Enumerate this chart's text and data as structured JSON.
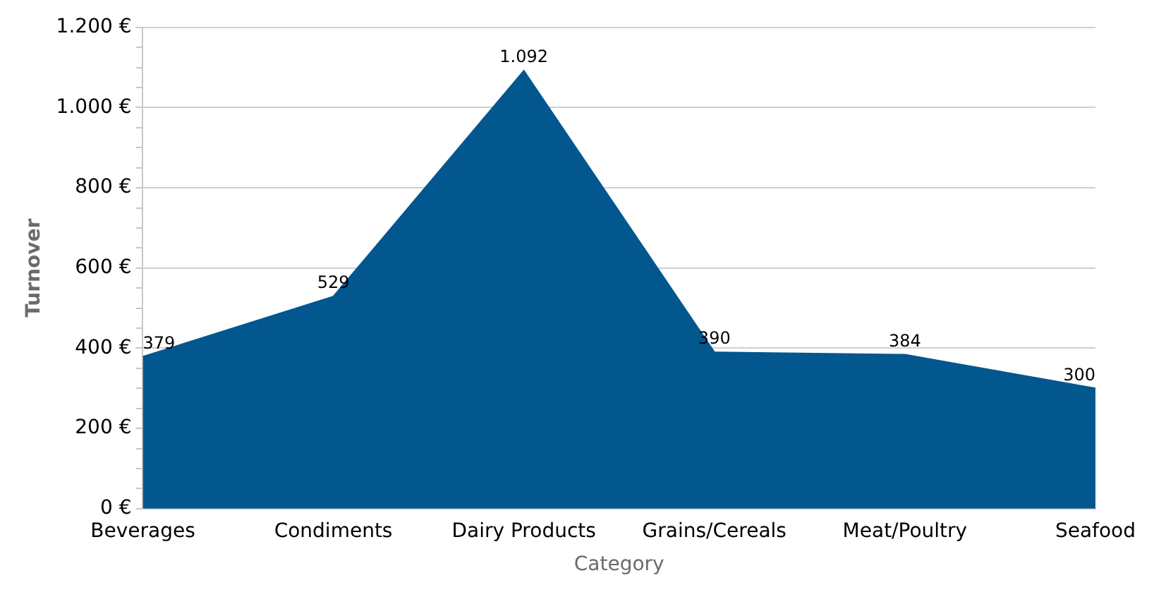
{
  "chart_data": {
    "type": "area",
    "xlabel": "Category",
    "ylabel": "Turnover",
    "categories": [
      "Beverages",
      "Condiments",
      "Dairy Products",
      "Grains/Cereals",
      "Meat/Poultry",
      "Seafood"
    ],
    "values": [
      379,
      529,
      1092,
      390,
      384,
      300
    ],
    "value_labels": [
      "379",
      "529",
      "1.092",
      "390",
      "384",
      "300"
    ],
    "color": "#02578f",
    "ylim": [
      0,
      1200
    ],
    "yticks": [
      {
        "value": 0,
        "label": "0 €"
      },
      {
        "value": 50,
        "label": null
      },
      {
        "value": 100,
        "label": null
      },
      {
        "value": 150,
        "label": null
      },
      {
        "value": 200,
        "label": "200 €"
      },
      {
        "value": 250,
        "label": null
      },
      {
        "value": 300,
        "label": null
      },
      {
        "value": 350,
        "label": null
      },
      {
        "value": 400,
        "label": "400 €"
      },
      {
        "value": 450,
        "label": null
      },
      {
        "value": 500,
        "label": null
      },
      {
        "value": 550,
        "label": null
      },
      {
        "value": 600,
        "label": "600 €"
      },
      {
        "value": 650,
        "label": null
      },
      {
        "value": 700,
        "label": null
      },
      {
        "value": 750,
        "label": null
      },
      {
        "value": 800,
        "label": "800 €"
      },
      {
        "value": 850,
        "label": null
      },
      {
        "value": 900,
        "label": null
      },
      {
        "value": 950,
        "label": null
      },
      {
        "value": 1000,
        "label": "1.000 €"
      },
      {
        "value": 1050,
        "label": null
      },
      {
        "value": 1100,
        "label": null
      },
      {
        "value": 1150,
        "label": null
      },
      {
        "value": 1200,
        "label": "1.200 €"
      }
    ],
    "grid": "y",
    "legend": false
  }
}
